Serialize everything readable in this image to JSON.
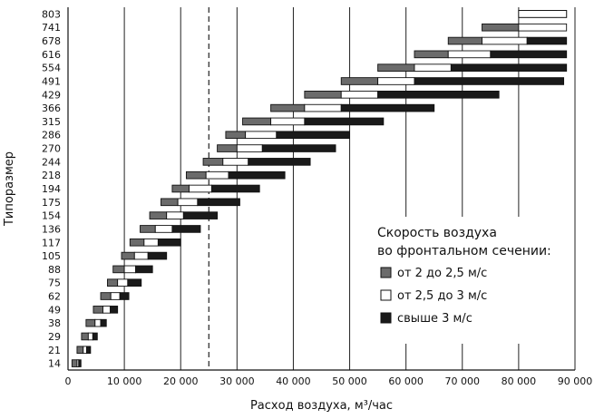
{
  "chart_data": {
    "type": "bar",
    "orientation": "horizontal-range",
    "xlabel": "Расход воздуха, м³/час",
    "ylabel": "Типоразмер",
    "xlim": [
      0,
      90000
    ],
    "xticks": [
      0,
      10000,
      20000,
      30000,
      40000,
      50000,
      60000,
      70000,
      80000,
      90000
    ],
    "xtick_labels": [
      "0",
      "10 000",
      "20 000",
      "30 000",
      "40 000",
      "50 000",
      "60 000",
      "70 000",
      "80 000",
      "90 000"
    ],
    "grid": "vertical",
    "reference_line": 25000,
    "legend": {
      "position": "right",
      "title_lines": [
        "Скорость воздуха",
        "во фронтальном сечении:"
      ],
      "entries": [
        {
          "label": "от 2 до 2,5 м/с",
          "color": "#6b6b6b"
        },
        {
          "label": "от 2,5 до 3 м/с",
          "color": "#ffffff"
        },
        {
          "label": "свыше 3 м/с",
          "color": "#1a1a1a"
        }
      ]
    },
    "categories": [
      "803",
      "741",
      "678",
      "616",
      "554",
      "491",
      "429",
      "366",
      "315",
      "286",
      "270",
      "244",
      "218",
      "194",
      "175",
      "154",
      "136",
      "117",
      "105",
      "88",
      "75",
      "62",
      "49",
      "38",
      "29",
      "21",
      "14"
    ],
    "series": [
      {
        "name": "от 2 до 2,5 м/с",
        "values": [
          [
            80000,
            88500
          ],
          [
            73500,
            80000
          ],
          [
            67500,
            73500
          ],
          [
            61500,
            67500
          ],
          [
            55000,
            61500
          ],
          [
            48500,
            55000
          ],
          [
            42000,
            48500
          ],
          [
            36000,
            42000
          ],
          [
            31000,
            36000
          ],
          [
            28000,
            31500
          ],
          [
            26500,
            30000
          ],
          [
            24000,
            27500
          ],
          [
            21000,
            24500
          ],
          [
            18500,
            21500
          ],
          [
            16500,
            19500
          ],
          [
            14500,
            17500
          ],
          [
            12800,
            15500
          ],
          [
            11000,
            13500
          ],
          [
            9500,
            11800
          ],
          [
            8000,
            10000
          ],
          [
            7000,
            8800
          ],
          [
            5800,
            7600
          ],
          [
            4500,
            6200
          ],
          [
            3200,
            4800
          ],
          [
            2400,
            3600
          ],
          [
            1600,
            2700
          ],
          [
            700,
            1600
          ]
        ]
      },
      {
        "name": "от 2,5 до 3 м/с",
        "values": [
          [
            80000,
            88500
          ],
          [
            80000,
            88500
          ],
          [
            73500,
            81500
          ],
          [
            67500,
            75000
          ],
          [
            61500,
            68000
          ],
          [
            55000,
            61500
          ],
          [
            48500,
            55000
          ],
          [
            42000,
            48500
          ],
          [
            36000,
            42000
          ],
          [
            31500,
            37000
          ],
          [
            30000,
            34500
          ],
          [
            27500,
            32000
          ],
          [
            24500,
            28500
          ],
          [
            21500,
            25500
          ],
          [
            19500,
            23000
          ],
          [
            17500,
            20500
          ],
          [
            15500,
            18500
          ],
          [
            13500,
            16000
          ],
          [
            11800,
            14200
          ],
          [
            10000,
            12000
          ],
          [
            8800,
            10600
          ],
          [
            7600,
            9200
          ],
          [
            6200,
            7500
          ],
          [
            4800,
            5800
          ],
          [
            3600,
            4400
          ],
          [
            2700,
            3300
          ],
          [
            1600,
            1900
          ]
        ]
      },
      {
        "name": "свыше 3 м/с",
        "values": [
          [
            88500,
            88500
          ],
          [
            88500,
            88500
          ],
          [
            81500,
            88500
          ],
          [
            75000,
            88500
          ],
          [
            68000,
            88500
          ],
          [
            61500,
            88000
          ],
          [
            55000,
            76500
          ],
          [
            48500,
            65000
          ],
          [
            42000,
            56000
          ],
          [
            37000,
            50000
          ],
          [
            34500,
            47500
          ],
          [
            32000,
            43000
          ],
          [
            28500,
            38500
          ],
          [
            25500,
            34000
          ],
          [
            23000,
            30500
          ],
          [
            20500,
            26500
          ],
          [
            18500,
            23500
          ],
          [
            16000,
            20000
          ],
          [
            14200,
            17500
          ],
          [
            12000,
            15000
          ],
          [
            10600,
            13000
          ],
          [
            9200,
            10800
          ],
          [
            7500,
            8800
          ],
          [
            5800,
            6800
          ],
          [
            4400,
            5200
          ],
          [
            3300,
            4000
          ],
          [
            1900,
            2300
          ]
        ]
      }
    ]
  }
}
